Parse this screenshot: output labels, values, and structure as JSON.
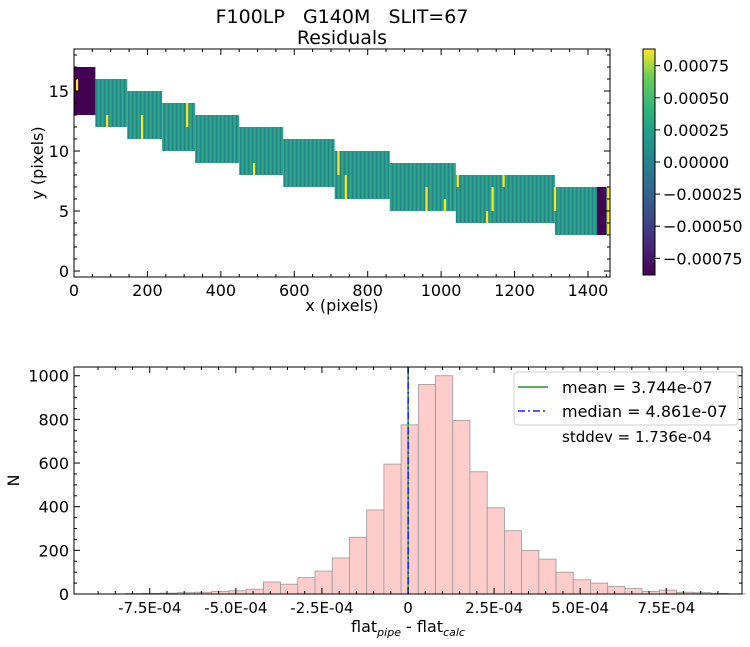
{
  "figure": {
    "title_line1": "F100LP   G140M   SLIT=67",
    "title_line2": "Residuals"
  },
  "chart_data": [
    {
      "type": "heatmap",
      "title": "Residuals",
      "xlabel": "x (pixels)",
      "ylabel": "y (pixels)",
      "xlim": [
        0,
        1460
      ],
      "ylim": [
        -0.5,
        18.5
      ],
      "xticks": [
        0,
        200,
        400,
        600,
        800,
        1000,
        1200,
        1400
      ],
      "yticks": [
        0,
        5,
        10,
        15
      ],
      "colormap": "viridis",
      "colorbar": {
        "vmin": -0.00088,
        "vmax": 0.00088,
        "ticks": [
          0.00075,
          0.0005,
          0.00025,
          0.0,
          -0.00025,
          -0.0005,
          -0.00075
        ],
        "tick_labels": [
          "0.00075",
          "0.00050",
          "0.00025",
          "0.00000",
          "−0.00025",
          "−0.00050",
          "−0.00075"
        ]
      },
      "trace_steps": [
        {
          "x0": 0,
          "x1": 58,
          "y0": 13,
          "y1": 17
        },
        {
          "x0": 58,
          "x1": 145,
          "y0": 12,
          "y1": 16
        },
        {
          "x0": 145,
          "x1": 240,
          "y0": 11,
          "y1": 15
        },
        {
          "x0": 240,
          "x1": 330,
          "y0": 10,
          "y1": 14
        },
        {
          "x0": 330,
          "x1": 450,
          "y0": 9,
          "y1": 13
        },
        {
          "x0": 450,
          "x1": 570,
          "y0": 8,
          "y1": 12
        },
        {
          "x0": 570,
          "x1": 710,
          "y0": 7,
          "y1": 11
        },
        {
          "x0": 710,
          "x1": 860,
          "y0": 6,
          "y1": 10
        },
        {
          "x0": 860,
          "x1": 1040,
          "y0": 5,
          "y1": 9
        },
        {
          "x0": 1040,
          "x1": 1310,
          "y0": 4,
          "y1": 8
        },
        {
          "x0": 1310,
          "x1": 1455,
          "y0": 3,
          "y1": 7
        }
      ],
      "outliers_low": [
        {
          "x0": 0,
          "x1": 58,
          "y0": 13,
          "y1": 17
        },
        {
          "x0": 1425,
          "x1": 1450,
          "y0": 3,
          "y1": 7
        }
      ],
      "outliers_high": [
        {
          "x": 8,
          "y0": 15,
          "y1": 16
        },
        {
          "x": 90,
          "y0": 12,
          "y1": 13
        },
        {
          "x": 185,
          "y0": 11,
          "y1": 13
        },
        {
          "x": 308,
          "y0": 12,
          "y1": 14
        },
        {
          "x": 490,
          "y0": 8,
          "y1": 9
        },
        {
          "x": 720,
          "y0": 8,
          "y1": 10
        },
        {
          "x": 740,
          "y0": 6,
          "y1": 8
        },
        {
          "x": 960,
          "y0": 5,
          "y1": 7
        },
        {
          "x": 1010,
          "y0": 5,
          "y1": 6
        },
        {
          "x": 1045,
          "y0": 7,
          "y1": 8
        },
        {
          "x": 1125,
          "y0": 4,
          "y1": 5
        },
        {
          "x": 1140,
          "y0": 5,
          "y1": 7
        },
        {
          "x": 1170,
          "y0": 7,
          "y1": 8
        },
        {
          "x": 1310,
          "y0": 5,
          "y1": 7
        },
        {
          "x": 1455,
          "y0": 3,
          "y1": 7
        }
      ]
    },
    {
      "type": "bar",
      "subtype": "histogram",
      "xlabel_main": "flat",
      "xlabel_sub1": "pipe",
      "xlabel_mid": " - flat",
      "xlabel_sub2": "calc",
      "ylabel": "N",
      "xlim": [
        -0.00097,
        0.00097
      ],
      "ylim": [
        0,
        1040
      ],
      "xticks": [
        -0.00075,
        -0.0005,
        -0.00025,
        0,
        0.00025,
        0.0005,
        0.00075
      ],
      "xtick_labels": [
        "-7.5E-04",
        "-5.0E-04",
        "-2.5E-04",
        "0",
        "2.5E-04",
        "5.0E-04",
        "7.5E-04"
      ],
      "yticks": [
        0,
        200,
        400,
        600,
        800,
        1000
      ],
      "bin_start": -0.00092,
      "bin_width": 5e-05,
      "values": [
        0,
        0,
        2,
        3,
        4,
        6,
        8,
        12,
        15,
        22,
        55,
        45,
        75,
        105,
        165,
        260,
        385,
        595,
        775,
        960,
        1000,
        795,
        560,
        395,
        290,
        200,
        160,
        100,
        65,
        50,
        35,
        25,
        12,
        18,
        8,
        6,
        3,
        1,
        0
      ],
      "legend": {
        "position": "top-right",
        "mean_label": "mean = 3.744e-07",
        "median_label": "median = 4.861e-07",
        "stddev_label": "stddev = 1.736e-04"
      },
      "mean": 3.744e-07,
      "median": 4.861e-07,
      "colors": {
        "bar_fill": "#ffcccc",
        "bar_edge": "#999999",
        "mean": "#2e8b2e",
        "median": "#1f1fff"
      }
    }
  ]
}
